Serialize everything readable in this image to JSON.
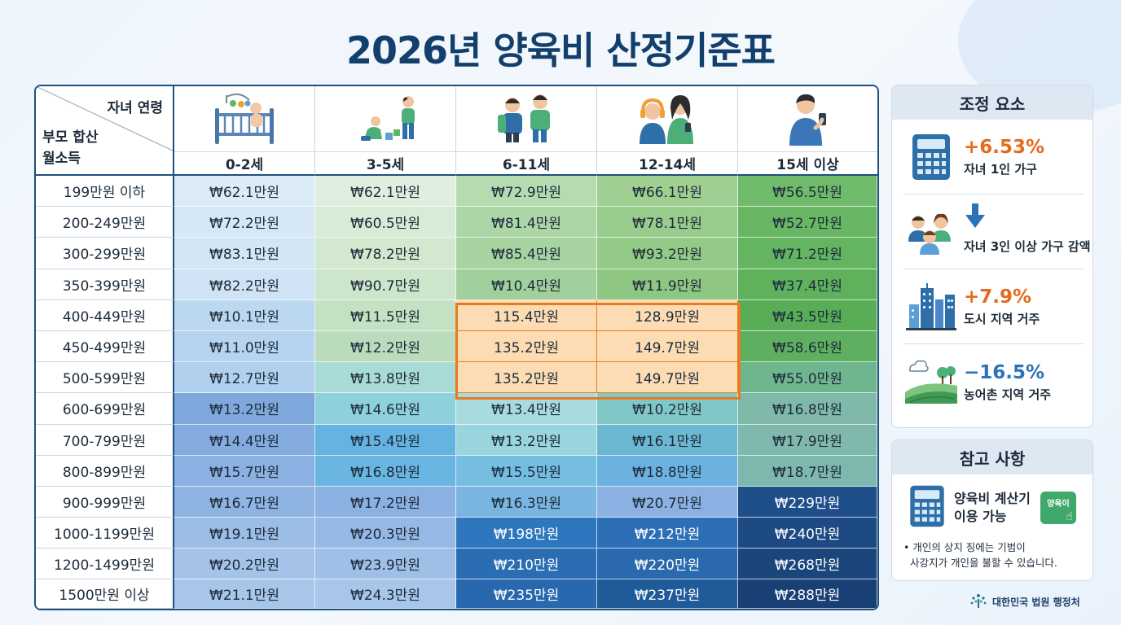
{
  "title": "2026년 양육비 산정기준표",
  "table": {
    "corner_top": "자녀 연령",
    "corner_bottom_line1": "부모 합산",
    "corner_bottom_line2": "월소득",
    "age_groups": [
      {
        "label": "0-2세",
        "icon": "baby-crib-icon"
      },
      {
        "label": "3-5세",
        "icon": "toddlers-playing-icon"
      },
      {
        "label": "6-11세",
        "icon": "school-children-icon"
      },
      {
        "label": "12-14세",
        "icon": "teenagers-icon"
      },
      {
        "label": "15세 이상",
        "icon": "young-adult-phone-icon"
      }
    ],
    "income_brackets": [
      "199만원 이하",
      "200-249만원",
      "300-299만원",
      "350-399만원",
      "400-449만원",
      "450-499만원",
      "500-599만원",
      "600-699만원",
      "700-799만원",
      "800-899만원",
      "900-999만원",
      "1000-1199만원",
      "1200-1499만원",
      "1500만원 이상"
    ],
    "rows": [
      [
        "₩62.1만원",
        "₩62.1만원",
        "₩72.9만원",
        "₩66.1만원",
        "₩56.5만원"
      ],
      [
        "₩72.2만원",
        "₩60.5만원",
        "₩81.4만원",
        "₩78.1만원",
        "₩52.7만원"
      ],
      [
        "₩83.1만원",
        "₩78.2만원",
        "₩85.4만원",
        "₩93.2만원",
        "₩71.2만원"
      ],
      [
        "₩82.2만원",
        "₩90.7만원",
        "₩10.4만원",
        "₩11.9만원",
        "₩37.4만원"
      ],
      [
        "₩10.1만원",
        "₩11.5만원",
        "115.4만원",
        "128.9만원",
        "₩43.5만원"
      ],
      [
        "₩11.0만원",
        "₩12.2만원",
        "135.2만원",
        "149.7만원",
        "₩58.6만원"
      ],
      [
        "₩12.7만원",
        "₩13.8만원",
        "135.2만원",
        "149.7만원",
        "₩55.0만원"
      ],
      [
        "₩13.2만원",
        "₩14.6만원",
        "₩13.4만원",
        "₩10.2만원",
        "₩16.8만원"
      ],
      [
        "₩14.4만원",
        "₩15.4만원",
        "₩13.2만원",
        "₩16.1만원",
        "₩17.9만원"
      ],
      [
        "₩15.7만원",
        "₩16.8만원",
        "₩15.5만원",
        "₩18.8만원",
        "₩18.7만원"
      ],
      [
        "₩16.7만원",
        "₩17.2만원",
        "₩16.3만원",
        "₩20.7만원",
        "₩229만원"
      ],
      [
        "₩19.1만원",
        "₩20.3만원",
        "₩198만원",
        "₩212만원",
        "₩240만원"
      ],
      [
        "₩20.2만원",
        "₩23.9만원",
        "₩210만원",
        "₩220만원",
        "₩268만원"
      ],
      [
        "₩21.1만원",
        "₩24.3만원",
        "₩235만원",
        "₩237만원",
        "₩288만원"
      ]
    ],
    "highlighted_cells": [
      [
        4,
        2
      ],
      [
        4,
        3
      ],
      [
        5,
        2
      ],
      [
        5,
        3
      ],
      [
        6,
        2
      ],
      [
        6,
        3
      ]
    ],
    "highlight_color": "#ea7a1f"
  },
  "adjustments": {
    "title": "조정 요소",
    "items": [
      {
        "value": "+6.53%",
        "sign": "plus",
        "desc": "자녀 1인 가구",
        "icon": "calculator-icon"
      },
      {
        "value": "",
        "sign": "minus",
        "desc": "자녀 3인 이상 가구 감액",
        "icon": "family-down-arrow-icon"
      },
      {
        "value": "+7.9%",
        "sign": "plus",
        "desc": "도시 지역 거주",
        "icon": "city-buildings-icon"
      },
      {
        "value": "−16.5%",
        "sign": "minus",
        "desc": "농어촌 지역 거주",
        "icon": "rural-field-icon"
      }
    ]
  },
  "reference": {
    "title": "참고 사항",
    "calc_line1": "양육비 계산기",
    "calc_line2": "이용 가능",
    "badge": "양육이",
    "note_line1": "• 개인의 상지 징에는 기범이",
    "note_line2": "사강지가 개인을 불할 수 있습니다."
  },
  "footer": "대한민국 법원 행정처"
}
